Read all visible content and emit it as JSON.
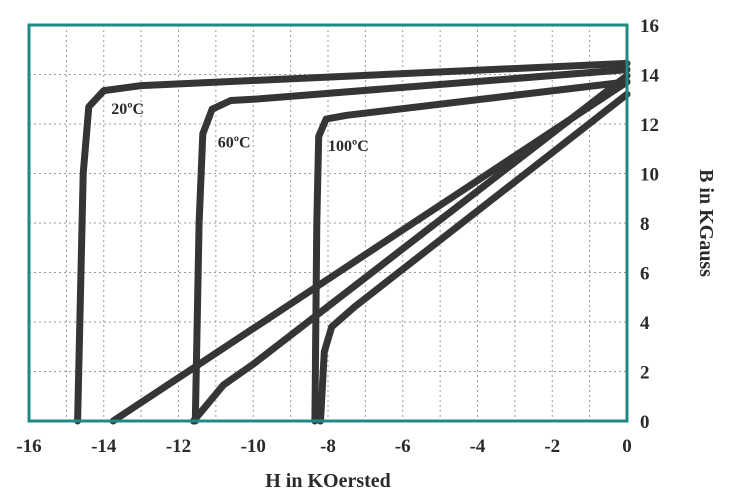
{
  "chart_data": {
    "type": "line",
    "xlabel": "H in KOersted",
    "ylabel": "B in KGauss",
    "xlim": [
      -16,
      0
    ],
    "ylim": [
      0,
      16
    ],
    "x_ticks": [
      -16,
      -14,
      -12,
      -10,
      -8,
      -6,
      -4,
      -2,
      0
    ],
    "y_ticks": [
      0,
      2,
      4,
      6,
      8,
      10,
      12,
      14,
      16
    ],
    "grid": true,
    "frame_color": "#1f8a85",
    "line_color": "#353535",
    "series": [
      {
        "label": "20ºC",
        "label_at": [
          -13.8,
          12.4
        ],
        "points": [
          [
            -14.7,
            0
          ],
          [
            -14.55,
            10
          ],
          [
            -14.4,
            12.7
          ],
          [
            -14.0,
            13.35
          ],
          [
            -13,
            13.55
          ],
          [
            0,
            14.45
          ]
        ]
      },
      {
        "label": "60ºC",
        "label_at": [
          -10.95,
          11.05
        ],
        "points": [
          [
            -11.55,
            0
          ],
          [
            -11.45,
            8
          ],
          [
            -11.35,
            11.6
          ],
          [
            -11.1,
            12.6
          ],
          [
            -10.6,
            12.95
          ],
          [
            -10,
            13.0
          ],
          [
            0,
            14.2
          ]
        ]
      },
      {
        "label": "100ºC",
        "label_at": [
          -8.0,
          10.9
        ],
        "points": [
          [
            -8.35,
            0
          ],
          [
            -8.3,
            8
          ],
          [
            -8.25,
            11.5
          ],
          [
            -8.05,
            12.2
          ],
          [
            -7.5,
            12.35
          ],
          [
            0,
            13.7
          ]
        ]
      },
      {
        "label": "",
        "points": [
          [
            -13.75,
            0
          ],
          [
            0,
            13.7
          ]
        ]
      },
      {
        "label": "",
        "points": [
          [
            -11.6,
            0
          ],
          [
            -10.8,
            1.45
          ],
          [
            -10.0,
            2.3
          ],
          [
            0,
            13.95
          ]
        ]
      },
      {
        "label": "",
        "points": [
          [
            -8.2,
            0
          ],
          [
            -8.1,
            2.8
          ],
          [
            -7.9,
            3.8
          ],
          [
            -7.3,
            4.6
          ],
          [
            0,
            13.2
          ]
        ]
      }
    ]
  }
}
